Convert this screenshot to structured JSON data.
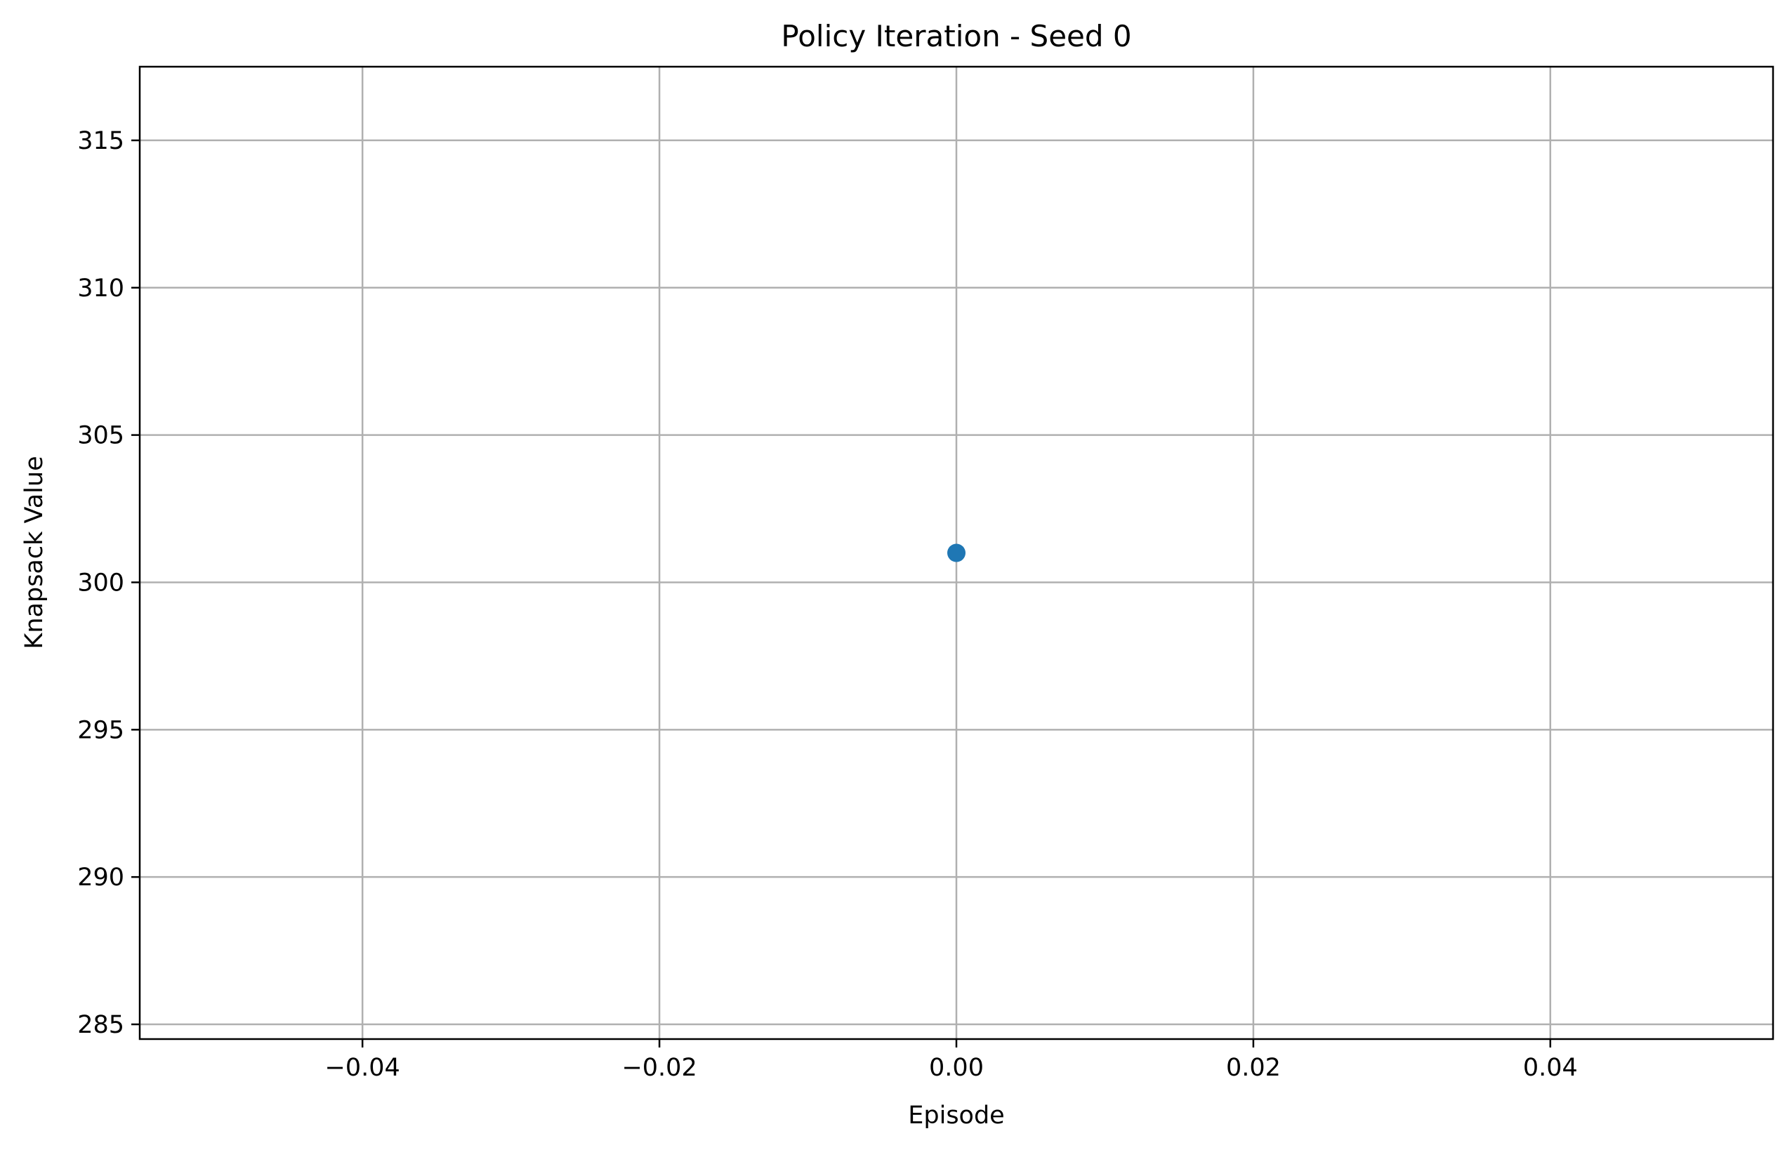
{
  "chart_data": {
    "type": "scatter",
    "title": "Policy Iteration - Seed 0",
    "xlabel": "Episode",
    "ylabel": "Knapsack Value",
    "xlim": [
      -0.055,
      0.055
    ],
    "ylim": [
      284.5,
      317.5
    ],
    "xticks": [
      -0.04,
      -0.02,
      0.0,
      0.02,
      0.04
    ],
    "xtick_labels": [
      "−0.04",
      "−0.02",
      "0.00",
      "0.02",
      "0.04"
    ],
    "yticks": [
      285,
      290,
      295,
      300,
      305,
      310,
      315
    ],
    "ytick_labels": [
      "285",
      "290",
      "295",
      "300",
      "305",
      "310",
      "315"
    ],
    "grid": true,
    "series": [
      {
        "x": [
          0
        ],
        "y": [
          301
        ],
        "color": "#1f77b4"
      }
    ]
  }
}
